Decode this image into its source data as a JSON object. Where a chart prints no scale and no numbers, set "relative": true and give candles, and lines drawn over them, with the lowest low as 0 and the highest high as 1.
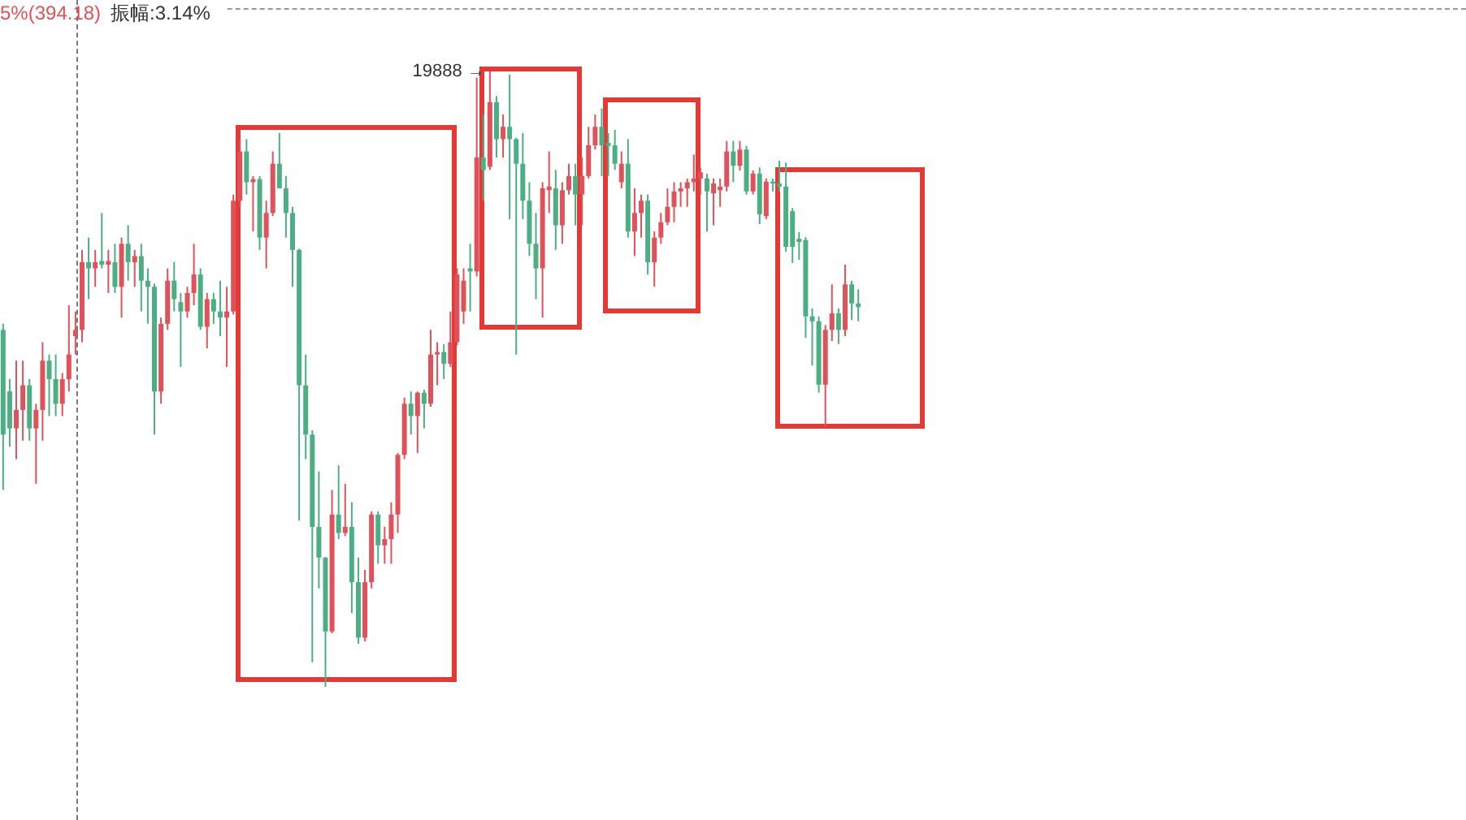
{
  "chart_data": {
    "type": "candlestick",
    "relative": true,
    "annotations": [
      "5%(394.18)",
      "振幅:3.14%",
      "19888 →"
    ],
    "categories": [
      null,
      null,
      null,
      null,
      null,
      null,
      null,
      null,
      null,
      null,
      null,
      null,
      null,
      null,
      null,
      null,
      null,
      null,
      null,
      null,
      null,
      null,
      null,
      null,
      null,
      null,
      null,
      null,
      null,
      null,
      null,
      null,
      null,
      null,
      null,
      null,
      null,
      null,
      null,
      null,
      null,
      null,
      null,
      null,
      null,
      null,
      null,
      null,
      null,
      null,
      null,
      null,
      null,
      null,
      null,
      null,
      null,
      null,
      null,
      null,
      null,
      null,
      null,
      null,
      null,
      null,
      null,
      null,
      null,
      null,
      null,
      null,
      null,
      null,
      null,
      null,
      null,
      null,
      null,
      null,
      null,
      null,
      null,
      null,
      null,
      null,
      null,
      null,
      null,
      null,
      null,
      null,
      null,
      null,
      null,
      null,
      null,
      null,
      null,
      null,
      null,
      null,
      null,
      null,
      null,
      null,
      null,
      null,
      null,
      null,
      null,
      null,
      null,
      null,
      null,
      null,
      null,
      null,
      null,
      null,
      null,
      null,
      null,
      null,
      null,
      null,
      null,
      null,
      null,
      null,
      null
    ],
    "ohlc": [
      [
        0.58,
        0.59,
        0.32,
        0.41
      ],
      [
        0.48,
        0.5,
        0.39,
        0.42
      ],
      [
        0.42,
        0.53,
        0.37,
        0.45
      ],
      [
        0.45,
        0.53,
        0.4,
        0.49
      ],
      [
        0.49,
        0.5,
        0.4,
        0.42
      ],
      [
        0.42,
        0.46,
        0.33,
        0.45
      ],
      [
        0.45,
        0.56,
        0.4,
        0.53
      ],
      [
        0.53,
        0.54,
        0.44,
        0.5
      ],
      [
        0.5,
        0.54,
        0.44,
        0.46
      ],
      [
        0.46,
        0.51,
        0.44,
        0.5
      ],
      [
        0.5,
        0.62,
        0.48,
        0.54
      ],
      [
        0.57,
        0.61,
        0.54,
        0.58
      ],
      [
        0.58,
        0.71,
        0.56,
        0.69
      ],
      [
        0.69,
        0.73,
        0.63,
        0.68
      ],
      [
        0.68,
        0.71,
        0.65,
        0.69
      ],
      [
        0.692,
        0.77,
        0.68,
        0.686
      ],
      [
        0.686,
        0.71,
        0.64,
        0.692
      ],
      [
        0.69,
        0.72,
        0.64,
        0.65
      ],
      [
        0.65,
        0.73,
        0.6,
        0.72
      ],
      [
        0.72,
        0.75,
        0.66,
        0.69
      ],
      [
        0.69,
        0.71,
        0.65,
        0.7
      ],
      [
        0.7,
        0.72,
        0.61,
        0.66
      ],
      [
        0.66,
        0.68,
        0.59,
        0.65
      ],
      [
        0.65,
        0.655,
        0.41,
        0.48
      ],
      [
        0.48,
        0.6,
        0.46,
        0.59
      ],
      [
        0.59,
        0.68,
        0.58,
        0.66
      ],
      [
        0.66,
        0.69,
        0.61,
        0.63
      ],
      [
        0.625,
        0.64,
        0.52,
        0.61
      ],
      [
        0.61,
        0.65,
        0.6,
        0.64
      ],
      [
        0.64,
        0.72,
        0.62,
        0.67
      ],
      [
        0.67,
        0.68,
        0.58,
        0.585
      ],
      [
        0.585,
        0.64,
        0.55,
        0.63
      ],
      [
        0.63,
        0.64,
        0.59,
        0.61
      ],
      [
        0.61,
        0.66,
        0.57,
        0.6
      ],
      [
        0.6,
        0.65,
        0.52,
        0.61
      ],
      [
        0.61,
        0.8,
        0.605,
        0.79
      ],
      [
        0.79,
        0.89,
        0.78,
        0.87
      ],
      [
        0.87,
        0.89,
        0.8,
        0.82
      ],
      [
        0.82,
        0.83,
        0.74,
        0.825
      ],
      [
        0.825,
        0.83,
        0.71,
        0.73
      ],
      [
        0.73,
        0.79,
        0.68,
        0.77
      ],
      [
        0.77,
        0.87,
        0.765,
        0.85
      ],
      [
        0.85,
        0.9,
        0.81,
        0.81
      ],
      [
        0.81,
        0.83,
        0.73,
        0.77
      ],
      [
        0.77,
        0.78,
        0.65,
        0.71
      ],
      [
        0.71,
        0.712,
        0.27,
        0.49
      ],
      [
        0.49,
        0.54,
        0.37,
        0.41
      ],
      [
        0.41,
        0.417,
        0.04,
        0.26
      ],
      [
        0.26,
        0.35,
        0.16,
        0.21
      ],
      [
        0.21,
        0.211,
        0,
        0.09
      ],
      [
        0.09,
        0.32,
        0.087,
        0.28
      ],
      [
        0.28,
        0.36,
        0.24,
        0.25
      ],
      [
        0.25,
        0.33,
        0.245,
        0.26
      ],
      [
        0.26,
        0.3,
        0.12,
        0.17
      ],
      [
        0.17,
        0.21,
        0.07,
        0.08
      ],
      [
        0.08,
        0.19,
        0.074,
        0.17
      ],
      [
        0.17,
        0.285,
        0.16,
        0.28
      ],
      [
        0.28,
        0.285,
        0.2,
        0.23
      ],
      [
        0.23,
        0.26,
        0.2,
        0.24
      ],
      [
        0.24,
        0.3,
        0.2,
        0.28
      ],
      [
        0.28,
        0.38,
        0.25,
        0.377
      ],
      [
        0.377,
        0.47,
        0.37,
        0.46
      ],
      [
        0.46,
        0.48,
        0.41,
        0.44
      ],
      [
        0.44,
        0.48,
        0.38,
        0.478
      ],
      [
        0.478,
        0.483,
        0.42,
        0.46
      ],
      [
        0.46,
        0.58,
        0.455,
        0.54
      ],
      [
        0.54,
        0.56,
        0.49,
        0.544
      ],
      [
        0.544,
        0.557,
        0.5,
        0.525
      ],
      [
        0.525,
        0.61,
        0.52,
        0.56
      ],
      [
        0.56,
        0.68,
        0.555,
        0.67
      ],
      [
        0.61,
        0.68,
        0.59,
        0.66
      ],
      [
        0.68,
        0.72,
        0.61,
        0.675
      ],
      [
        0.675,
        0.99,
        0.667,
        0.86
      ],
      [
        0.86,
        0.93,
        0.79,
        0.84
      ],
      [
        0.845,
        1,
        0.84,
        0.95
      ],
      [
        0.95,
        0.96,
        0.86,
        0.89
      ],
      [
        0.89,
        0.93,
        0.86,
        0.91
      ],
      [
        0.91,
        0.995,
        0.76,
        0.89
      ],
      [
        0.89,
        0.892,
        0.54,
        0.85
      ],
      [
        0.85,
        0.9,
        0.76,
        0.79
      ],
      [
        0.79,
        0.82,
        0.7,
        0.72
      ],
      [
        0.72,
        0.77,
        0.63,
        0.68
      ],
      [
        0.68,
        0.82,
        0.6,
        0.81
      ],
      [
        0.807,
        0.87,
        0.77,
        0.813
      ],
      [
        0.81,
        0.84,
        0.71,
        0.75
      ],
      [
        0.75,
        0.82,
        0.72,
        0.807
      ],
      [
        0.807,
        0.85,
        0.8,
        0.83
      ],
      [
        0.83,
        0.85,
        0.75,
        0.8
      ],
      [
        0.8,
        0.86,
        0.75,
        0.83
      ],
      [
        0.83,
        0.91,
        0.826,
        0.88
      ],
      [
        0.88,
        0.93,
        0.873,
        0.91
      ],
      [
        0.91,
        0.94,
        0.83,
        0.88
      ],
      [
        0.884,
        0.9,
        0.83,
        0.879
      ],
      [
        0.88,
        0.905,
        0.84,
        0.85
      ],
      [
        0.82,
        0.87,
        0.81,
        0.85
      ],
      [
        0.85,
        0.89,
        0.73,
        0.74
      ],
      [
        0.74,
        0.81,
        0.7,
        0.77
      ],
      [
        0.77,
        0.8,
        0.73,
        0.79
      ],
      [
        0.79,
        0.8,
        0.67,
        0.69
      ],
      [
        0.69,
        0.74,
        0.65,
        0.73
      ],
      [
        0.73,
        0.77,
        0.72,
        0.755
      ],
      [
        0.755,
        0.81,
        0.75,
        0.78
      ],
      [
        0.78,
        0.82,
        0.755,
        0.805
      ],
      [
        0.805,
        0.82,
        0.78,
        0.81
      ],
      [
        0.81,
        0.826,
        0.78,
        0.82
      ],
      [
        0.82,
        0.865,
        0.805,
        0.826
      ],
      [
        0.826,
        0.844,
        0.8,
        0.836
      ],
      [
        0.826,
        0.834,
        0.74,
        0.805
      ],
      [
        0.802,
        0.826,
        0.75,
        0.818
      ],
      [
        0.807,
        0.826,
        0.78,
        0.813
      ],
      [
        0.813,
        0.887,
        0.805,
        0.87
      ],
      [
        0.87,
        0.887,
        0.82,
        0.847
      ],
      [
        0.847,
        0.887,
        0.839,
        0.873
      ],
      [
        0.873,
        0.879,
        0.8,
        0.805
      ],
      [
        0.805,
        0.839,
        0.8,
        0.834
      ],
      [
        0.834,
        0.844,
        0.752,
        0.768
      ],
      [
        0.765,
        0.826,
        0.76,
        0.821
      ],
      [
        0.821,
        0.826,
        0.805,
        0.818
      ],
      [
        0.818,
        0.855,
        0.805,
        0.813
      ],
      [
        0.813,
        0.852,
        0.707,
        0.715
      ],
      [
        0.773,
        0.778,
        0.689,
        0.715
      ],
      [
        0.728,
        0.739,
        0.694,
        0.723
      ],
      [
        0.726,
        0.731,
        0.567,
        0.602
      ],
      [
        0.602,
        0.615,
        0.522,
        0.594
      ],
      [
        0.594,
        0.602,
        0.478,
        0.491
      ],
      [
        0.491,
        0.588,
        0.422,
        0.58
      ],
      [
        0.58,
        0.654,
        0.562,
        0.607
      ],
      [
        0.607,
        0.615,
        0.557,
        0.58
      ],
      [
        0.58,
        0.686,
        0.57,
        0.654
      ],
      [
        0.654,
        0.66,
        0.596,
        0.623
      ],
      [
        0.623,
        0.646,
        0.594,
        0.617
      ]
    ],
    "colors": [
      "#4caf84",
      "#4caf84",
      "#e0525a",
      "#e0525a",
      "#4caf84",
      "#e0525a",
      "#e0525a",
      "#4caf84",
      "#4caf84",
      "#e0525a",
      "#e0525a",
      "#e0525a",
      "#e0525a",
      "#4caf84",
      "#e0525a",
      "#4caf84",
      "#e0525a",
      "#4caf84",
      "#e0525a",
      "#4caf84",
      "#e0525a",
      "#4caf84",
      "#4caf84",
      "#4caf84",
      "#e0525a",
      "#e0525a",
      "#4caf84",
      "#4caf84",
      "#e0525a",
      "#e0525a",
      "#4caf84",
      "#e0525a",
      "#4caf84",
      "#4caf84",
      "#e0525a",
      "#e0525a",
      "#e0525a",
      "#4caf84",
      "#e0525a",
      "#4caf84",
      "#e0525a",
      "#e0525a",
      "#4caf84",
      "#4caf84",
      "#4caf84",
      "#4caf84",
      "#4caf84",
      "#4caf84",
      "#4caf84",
      "#4caf84",
      "#e0525a",
      "#4caf84",
      "#e0525a",
      "#4caf84",
      "#4caf84",
      "#e0525a",
      "#e0525a",
      "#4caf84",
      "#e0525a",
      "#e0525a",
      "#e0525a",
      "#e0525a",
      "#4caf84",
      "#e0525a",
      "#4caf84",
      "#e0525a",
      "#e0525a",
      "#4caf84",
      "#e0525a",
      "#e0525a",
      "#e0525a",
      "#4caf84",
      "#e0525a",
      "#4caf84",
      "#e0525a",
      "#4caf84",
      "#e0525a",
      "#4caf84",
      "#4caf84",
      "#4caf84",
      "#4caf84",
      "#4caf84",
      "#e0525a",
      "#e0525a",
      "#4caf84",
      "#e0525a",
      "#e0525a",
      "#4caf84",
      "#e0525a",
      "#e0525a",
      "#e0525a",
      "#4caf84",
      "#4caf84",
      "#4caf84",
      "#e0525a",
      "#4caf84",
      "#e0525a",
      "#e0525a",
      "#4caf84",
      "#e0525a",
      "#e0525a",
      "#e0525a",
      "#e0525a",
      "#e0525a",
      "#e0525a",
      "#e0525a",
      "#e0525a",
      "#4caf84",
      "#e0525a",
      "#e0525a",
      "#e0525a",
      "#4caf84",
      "#e0525a",
      "#4caf84",
      "#e0525a",
      "#4caf84",
      "#e0525a",
      "#4caf84",
      "#4caf84",
      "#4caf84",
      "#4caf84",
      "#4caf84",
      "#4caf84",
      "#4caf84",
      "#4caf84",
      "#e0525a",
      "#e0525a",
      "#4caf84",
      "#e0525a",
      "#4caf84",
      "#4caf84"
    ]
  }
}
